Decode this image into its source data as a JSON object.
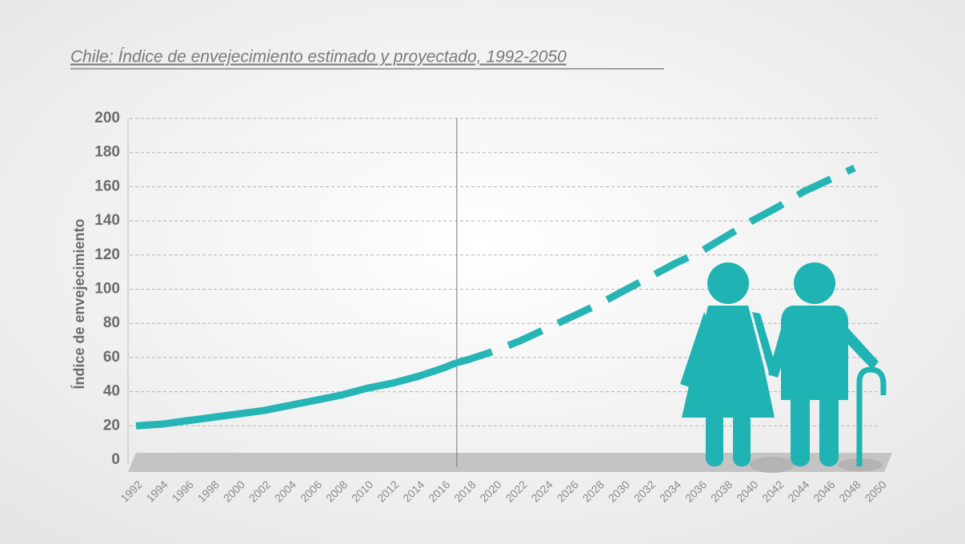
{
  "chart_data": {
    "type": "line",
    "title": "Chile:  Índice de envejecimiento estimado y proyectado, 1992-2050",
    "y_label": "Índice de envejecimiento",
    "x": [
      1992,
      1994,
      1996,
      1998,
      2000,
      2002,
      2004,
      2006,
      2008,
      2010,
      2012,
      2014,
      2016,
      2017,
      2018,
      2020,
      2022,
      2024,
      2026,
      2028,
      2030,
      2032,
      2034,
      2036,
      2038,
      2040,
      2042,
      2044,
      2046,
      2048
    ],
    "series": [
      {
        "color": "#26b5b5",
        "style": "solid",
        "values": [
          20,
          21,
          23,
          25,
          27,
          29,
          32,
          35,
          38,
          42,
          45,
          49,
          54,
          57,
          null,
          null,
          null,
          null,
          null,
          null,
          null,
          null,
          null,
          null,
          null,
          null,
          null,
          null,
          null,
          null
        ]
      },
      {
        "color": "#26b5b5",
        "style": "dashed",
        "values": [
          null,
          null,
          null,
          null,
          null,
          null,
          null,
          null,
          null,
          null,
          null,
          null,
          null,
          57,
          59,
          64,
          70,
          77,
          84,
          91,
          99,
          107,
          115,
          122,
          131,
          140,
          148,
          157,
          164,
          171
        ]
      }
    ],
    "divider": 2017,
    "xlim": [
      1992,
      2050
    ],
    "xticks": [
      1992,
      1994,
      1996,
      1998,
      2000,
      2002,
      2004,
      2006,
      2008,
      2010,
      2012,
      2014,
      2016,
      2018,
      2020,
      2022,
      2024,
      2026,
      2028,
      2030,
      2032,
      2034,
      2036,
      2038,
      2040,
      2042,
      2044,
      2046,
      2048,
      2050
    ],
    "ylim": [
      0,
      200
    ],
    "yticks": [
      0,
      20,
      40,
      60,
      80,
      100,
      120,
      140,
      160,
      180,
      200
    ],
    "grid": true
  }
}
